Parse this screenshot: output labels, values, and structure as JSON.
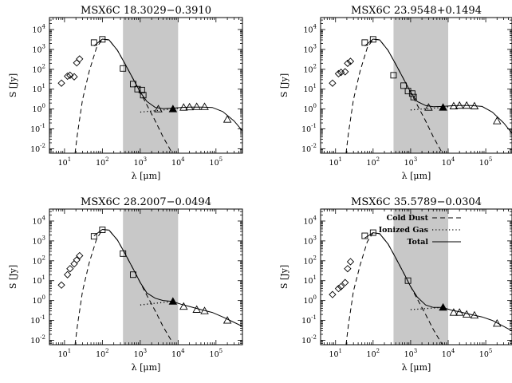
{
  "chart_data": [
    {
      "type": "scatter",
      "title": "MSX6C 18.3029−0.3910",
      "xlabel": "λ [μm]",
      "ylabel": "S [Jy]",
      "xscale": "log",
      "yscale": "log",
      "xlim": [
        4,
        500000
      ],
      "ylim": [
        0.006,
        40000
      ],
      "shaded_region": [
        350,
        10000
      ],
      "series": [
        {
          "name": "diamonds",
          "marker": "diamond",
          "x": [
            8.3,
            12,
            14,
            18,
            21,
            25
          ],
          "y": [
            20,
            45,
            50,
            42,
            210,
            330
          ]
        },
        {
          "name": "squares",
          "marker": "square",
          "x": [
            60,
            100,
            350,
            650,
            850,
            1100,
            1200
          ],
          "y": [
            2200,
            3200,
            110,
            18,
            10,
            9,
            5
          ]
        },
        {
          "name": "triangles",
          "marker": "triangle",
          "x": [
            3000,
            14000,
            20000,
            31000,
            50000,
            200000
          ],
          "y": [
            1.0,
            1.2,
            1.25,
            1.3,
            1.3,
            0.3
          ]
        },
        {
          "name": "filled-triangle",
          "marker": "filled-triangle",
          "x": [
            7300
          ],
          "y": [
            1.0
          ]
        },
        {
          "name": "Cold Dust",
          "style": "dashed",
          "x": [
            19,
            22,
            30,
            45,
            70,
            100,
            150,
            250,
            400,
            700,
            1000,
            1500,
            2500,
            4000,
            7000
          ],
          "y": [
            0.006,
            0.06,
            3,
            80,
            1200,
            3300,
            3000,
            900,
            180,
            25,
            7,
            1.6,
            0.25,
            0.04,
            0.006
          ]
        },
        {
          "name": "Ionized Gas",
          "style": "dotted",
          "x": [
            1000,
            2000,
            4000,
            7000,
            10000
          ],
          "y": [
            0.7,
            0.8,
            0.9,
            1.0,
            1.1
          ]
        },
        {
          "name": "Total",
          "style": "solid",
          "x": [
            60,
            100,
            150,
            250,
            400,
            700,
            1000,
            1500,
            2500,
            4000,
            7000,
            12000,
            20000,
            40000,
            80000,
            150000,
            300000,
            500000
          ],
          "y": [
            1500,
            3300,
            3000,
            900,
            180,
            25,
            7,
            2.4,
            1.2,
            1.05,
            1.1,
            1.2,
            1.25,
            1.25,
            1.2,
            0.75,
            0.25,
            0.08
          ]
        }
      ]
    },
    {
      "type": "scatter",
      "title": "MSX6C 23.9548+0.1494",
      "xlabel": "λ [μm]",
      "ylabel": "S [Jy]",
      "xscale": "log",
      "yscale": "log",
      "xlim": [
        4,
        500000
      ],
      "ylim": [
        0.006,
        40000
      ],
      "shaded_region": [
        350,
        10000
      ],
      "series": [
        {
          "name": "diamonds",
          "marker": "diamond",
          "x": [
            8.3,
            12,
            14,
            18,
            21,
            25
          ],
          "y": [
            20,
            60,
            70,
            75,
            200,
            250
          ]
        },
        {
          "name": "squares",
          "marker": "square",
          "x": [
            60,
            100,
            350,
            650,
            850,
            1100,
            1200
          ],
          "y": [
            2200,
            3200,
            50,
            15,
            8,
            6,
            4
          ]
        },
        {
          "name": "triangles",
          "marker": "triangle",
          "x": [
            3000,
            14000,
            20000,
            31000,
            50000,
            200000
          ],
          "y": [
            1.2,
            1.4,
            1.5,
            1.5,
            1.4,
            0.25
          ]
        },
        {
          "name": "filled-triangle",
          "marker": "filled-triangle",
          "x": [
            7300
          ],
          "y": [
            1.2
          ]
        },
        {
          "name": "Cold Dust",
          "style": "dashed",
          "x": [
            19,
            22,
            30,
            45,
            70,
            100,
            150,
            250,
            400,
            700,
            1000,
            1500,
            2500,
            4000,
            7000
          ],
          "y": [
            0.006,
            0.06,
            3,
            80,
            1200,
            3300,
            3000,
            900,
            180,
            25,
            7,
            1.6,
            0.25,
            0.04,
            0.006
          ]
        },
        {
          "name": "Ionized Gas",
          "style": "dotted",
          "x": [
            1000,
            2000,
            4000,
            7000,
            10000
          ],
          "y": [
            0.9,
            1.0,
            1.1,
            1.2,
            1.3
          ]
        },
        {
          "name": "Total",
          "style": "solid",
          "x": [
            60,
            100,
            150,
            250,
            400,
            700,
            1000,
            1500,
            2500,
            4000,
            7000,
            12000,
            20000,
            40000,
            80000,
            150000,
            300000,
            500000
          ],
          "y": [
            1500,
            3300,
            3000,
            900,
            180,
            25,
            7,
            2.4,
            1.5,
            1.3,
            1.35,
            1.45,
            1.5,
            1.5,
            1.35,
            0.7,
            0.2,
            0.06
          ]
        }
      ]
    },
    {
      "type": "scatter",
      "title": "MSX6C 28.2007−0.0494",
      "xlabel": "λ [μm]",
      "ylabel": "S [Jy]",
      "xscale": "log",
      "yscale": "log",
      "xlim": [
        4,
        500000
      ],
      "ylim": [
        0.006,
        40000
      ],
      "shaded_region": [
        350,
        10000
      ],
      "series": [
        {
          "name": "diamonds",
          "marker": "diamond",
          "x": [
            8.3,
            12,
            14,
            18,
            21,
            25
          ],
          "y": [
            6,
            20,
            40,
            70,
            110,
            180
          ]
        },
        {
          "name": "squares",
          "marker": "square",
          "x": [
            60,
            100,
            350,
            650
          ],
          "y": [
            1700,
            3600,
            230,
            20
          ]
        },
        {
          "name": "triangles",
          "marker": "triangle",
          "x": [
            14000,
            31000,
            50000,
            200000
          ],
          "y": [
            0.5,
            0.35,
            0.3,
            0.1
          ]
        },
        {
          "name": "filled-triangle",
          "marker": "filled-triangle",
          "x": [
            7300
          ],
          "y": [
            0.9
          ]
        },
        {
          "name": "Cold Dust",
          "style": "dashed",
          "x": [
            19,
            22,
            30,
            45,
            70,
            100,
            150,
            250,
            400,
            700,
            1000,
            1500,
            2500,
            4000,
            7000
          ],
          "y": [
            0.006,
            0.06,
            3,
            80,
            1200,
            3800,
            3500,
            1100,
            220,
            30,
            8,
            1.8,
            0.3,
            0.05,
            0.008
          ]
        },
        {
          "name": "Ionized Gas",
          "style": "dotted",
          "x": [
            1000,
            2000,
            4000,
            7000
          ],
          "y": [
            0.6,
            0.7,
            0.8,
            0.9
          ]
        },
        {
          "name": "Total",
          "style": "solid",
          "x": [
            60,
            100,
            150,
            250,
            400,
            700,
            1000,
            1500,
            2500,
            4000,
            7000,
            12000,
            20000,
            40000,
            80000,
            150000,
            300000,
            500000
          ],
          "y": [
            1800,
            3800,
            3500,
            1100,
            220,
            30,
            8,
            2.4,
            1.3,
            1.0,
            0.9,
            0.65,
            0.5,
            0.35,
            0.25,
            0.15,
            0.08,
            0.05
          ]
        }
      ]
    },
    {
      "type": "scatter",
      "title": "MSX6C 35.5789−0.0304",
      "xlabel": "λ [μm]",
      "ylabel": "S [Jy]",
      "xscale": "log",
      "yscale": "log",
      "xlim": [
        4,
        500000
      ],
      "ylim": [
        0.006,
        40000
      ],
      "shaded_region": [
        350,
        10000
      ],
      "legend_position": "top-right",
      "legend": [
        {
          "label": "Cold Dust",
          "style": "dashed"
        },
        {
          "label": "Ionized Gas",
          "style": "dotted"
        },
        {
          "label": "Total",
          "style": "solid"
        }
      ],
      "series": [
        {
          "name": "diamonds",
          "marker": "diamond",
          "x": [
            8.3,
            12,
            14,
            18,
            21,
            25
          ],
          "y": [
            2,
            4,
            5,
            8,
            40,
            90
          ]
        },
        {
          "name": "squares",
          "marker": "square",
          "x": [
            60,
            100,
            850
          ],
          "y": [
            1800,
            2600,
            10
          ]
        },
        {
          "name": "triangles",
          "marker": "triangle",
          "x": [
            14000,
            20000,
            31000,
            50000,
            200000
          ],
          "y": [
            0.25,
            0.25,
            0.2,
            0.18,
            0.07
          ]
        },
        {
          "name": "filled-triangle",
          "marker": "filled-triangle",
          "x": [
            7300
          ],
          "y": [
            0.45
          ]
        },
        {
          "name": "Cold Dust",
          "style": "dashed",
          "x": [
            19,
            22,
            30,
            45,
            70,
            100,
            150,
            250,
            400,
            700,
            1000,
            1500,
            2500,
            4000,
            7000
          ],
          "y": [
            0.006,
            0.06,
            3,
            60,
            900,
            2600,
            2300,
            700,
            140,
            19,
            5,
            1.2,
            0.2,
            0.035,
            0.006
          ]
        },
        {
          "name": "Ionized Gas",
          "style": "dotted",
          "x": [
            1000,
            2000,
            4000,
            7000
          ],
          "y": [
            0.35,
            0.38,
            0.42,
            0.45
          ]
        },
        {
          "name": "Total",
          "style": "solid",
          "x": [
            60,
            100,
            150,
            250,
            400,
            700,
            1000,
            1500,
            2500,
            4000,
            7000,
            12000,
            20000,
            40000,
            80000,
            150000,
            300000,
            500000
          ],
          "y": [
            1400,
            2600,
            2300,
            700,
            140,
            19,
            5,
            1.5,
            0.6,
            0.45,
            0.45,
            0.33,
            0.27,
            0.2,
            0.15,
            0.1,
            0.05,
            0.03
          ]
        }
      ]
    }
  ]
}
